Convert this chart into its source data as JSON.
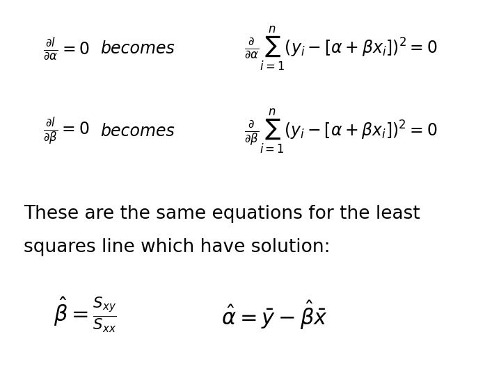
{
  "background_color": "#ffffff",
  "eq1_left": "\\frac{\\partial l}{\\partial \\alpha} = 0",
  "eq1_becomes": "becomes",
  "eq1_right": "\\frac{\\partial}{\\partial \\alpha}\\sum_{i=1}^{n}(y_i - [\\alpha + \\beta x_i])^2 = 0",
  "eq2_left": "\\frac{\\partial l}{\\partial \\beta} = 0",
  "eq2_becomes": "becomes",
  "eq2_right": "\\frac{\\partial}{\\partial \\beta}\\sum_{i=1}^{n}(y_i - [\\alpha + \\beta x_i])^2 = 0",
  "text_line1": "These are the same equations for the least",
  "text_line2": "squares line which have solution:",
  "sol_beta": "\\hat{\\beta} = \\frac{S_{xy}}{S_{xx}}",
  "sol_alpha": "\\hat{\\alpha} = \\bar{y} - \\hat{\\beta}\\bar{x}",
  "fontsize_eq": 17,
  "fontsize_becomes": 17,
  "fontsize_text": 19,
  "fontsize_sol": 19
}
